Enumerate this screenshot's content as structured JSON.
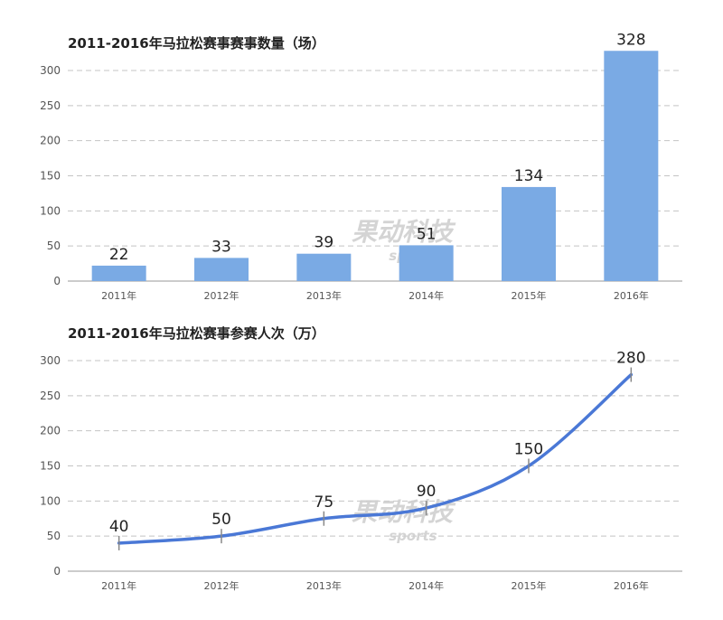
{
  "chart_data": [
    {
      "type": "bar",
      "title": "2011-2016年马拉松赛事赛事数量（场）",
      "categories": [
        "2011年",
        "2012年",
        "2013年",
        "2014年",
        "2015年",
        "2016年"
      ],
      "values": [
        22,
        33,
        39,
        51,
        134,
        328
      ],
      "data_labels": [
        "22",
        "33",
        "39",
        "51",
        "134",
        "328"
      ],
      "ylim": [
        0,
        300
      ],
      "yticks": [
        "0",
        "50",
        "100",
        "150",
        "200",
        "250",
        "300"
      ],
      "grid": true,
      "color": "#7aaae4"
    },
    {
      "type": "line",
      "title": "2011-2016年马拉松赛事参赛人次（万）",
      "categories": [
        "2011年",
        "2012年",
        "2013年",
        "2014年",
        "2015年",
        "2016年"
      ],
      "values": [
        40,
        50,
        75,
        90,
        150,
        280
      ],
      "data_labels": [
        "40",
        "50",
        "75",
        "90",
        "150",
        "280"
      ],
      "ylim": [
        0,
        300
      ],
      "yticks": [
        "0",
        "50",
        "100",
        "150",
        "200",
        "250",
        "300"
      ],
      "grid": true,
      "color": "#4a78d6"
    }
  ],
  "watermark": {
    "brand": "果动科技",
    "sub": "sports"
  }
}
